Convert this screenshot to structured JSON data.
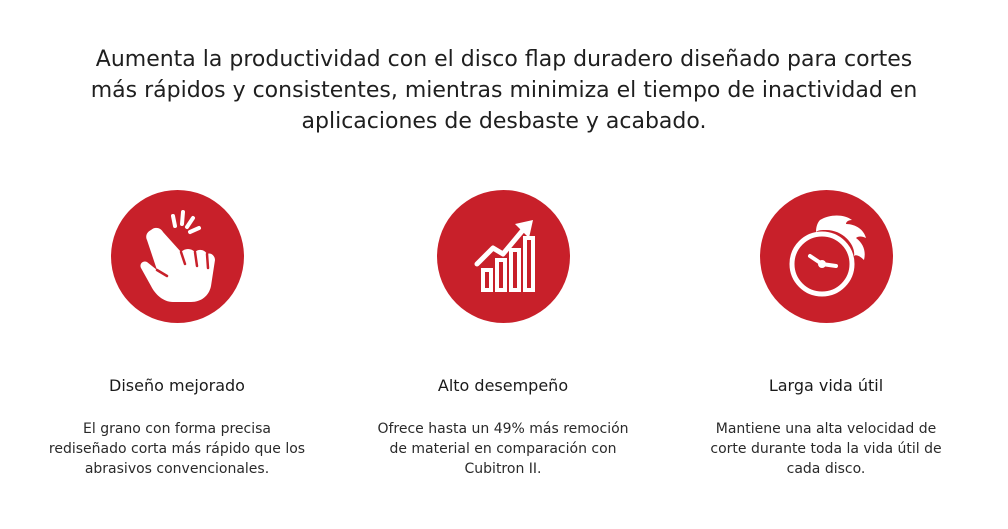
{
  "headline": "Aumenta la productividad con el disco flap duradero diseñado para cortes más rápidos y consistentes, mientras minimiza el tiempo de inactividad en aplicaciones de desbaste y acabado.",
  "colors": {
    "accent_red": "#c8202a",
    "icon_white": "#ffffff"
  },
  "features": [
    {
      "icon": "finger-snap-icon",
      "title": "Diseño mejorado",
      "description": "El grano con forma precisa rediseñado corta más rápido que los abrasivos convencionales."
    },
    {
      "icon": "growth-chart-icon",
      "title": "Alto desempeño",
      "description": "Ofrece hasta un 49% más remoción de material en comparación con Cubitron II."
    },
    {
      "icon": "flaming-clock-icon",
      "title": "Larga vida útil",
      "description": "Mantiene una alta velocidad de corte durante toda la vida útil de cada disco."
    }
  ]
}
